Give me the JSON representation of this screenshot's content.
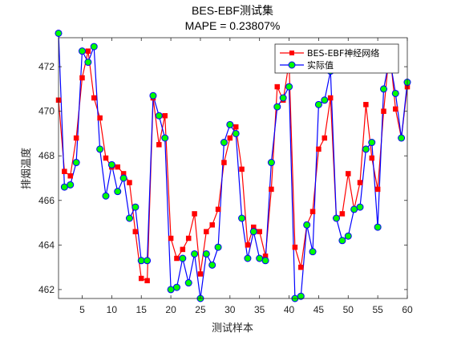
{
  "chart_data": {
    "type": "line",
    "title": "BES-EBF测试集",
    "subtitle": "MAPE = 0.23807%",
    "xlabel": "测试样本",
    "ylabel": "排烟温度",
    "xlim": [
      1,
      60
    ],
    "ylim": [
      461.6,
      473.3
    ],
    "xticks": [
      5,
      10,
      15,
      20,
      25,
      30,
      35,
      40,
      45,
      50,
      55,
      60
    ],
    "yticks": [
      462,
      464,
      466,
      468,
      470,
      472
    ],
    "grid": false,
    "legend_position": "top-right",
    "x": [
      1,
      2,
      3,
      4,
      5,
      6,
      7,
      8,
      9,
      10,
      11,
      12,
      13,
      14,
      15,
      16,
      17,
      18,
      19,
      20,
      21,
      22,
      23,
      24,
      25,
      26,
      27,
      28,
      29,
      30,
      31,
      32,
      33,
      34,
      35,
      36,
      37,
      38,
      39,
      40,
      41,
      42,
      43,
      44,
      45,
      46,
      47,
      48,
      49,
      50,
      51,
      52,
      53,
      54,
      55,
      56,
      57,
      58,
      59,
      60
    ],
    "series": [
      {
        "name": "BES-EBF神经网络",
        "color": "#ff0000",
        "marker": "square",
        "values": [
          470.5,
          467.3,
          467.1,
          468.8,
          471.5,
          472.7,
          470.6,
          469.7,
          467.9,
          467.5,
          467.5,
          467.2,
          466.8,
          464.6,
          462.5,
          462.4,
          470.6,
          468.5,
          469.8,
          464.3,
          463.4,
          463.8,
          464.3,
          465.4,
          462.7,
          464.6,
          464.9,
          465.6,
          467.7,
          468.8,
          469.3,
          467.4,
          464.0,
          464.8,
          464.6,
          463.5,
          466.5,
          471.1,
          470.5,
          472.2,
          463.9,
          463.0,
          464.9,
          465.5,
          468.3,
          468.8,
          470.6,
          465.2,
          465.4,
          467.2,
          465.6,
          466.8,
          470.3,
          467.9,
          466.5,
          470.0,
          472.8,
          470.1,
          468.8,
          471.1
        ]
      },
      {
        "name": "实际值",
        "color": "#0000ff",
        "marker": "circle",
        "values": [
          473.5,
          466.6,
          466.7,
          467.7,
          472.7,
          472.2,
          472.9,
          468.3,
          466.2,
          467.6,
          466.4,
          467.0,
          465.2,
          465.7,
          463.3,
          463.3,
          470.7,
          469.8,
          468.8,
          462.0,
          462.1,
          463.4,
          462.3,
          463.6,
          461.6,
          463.6,
          463.1,
          463.9,
          468.6,
          469.4,
          469.0,
          465.2,
          463.4,
          464.6,
          463.4,
          463.3,
          467.7,
          470.2,
          470.6,
          471.1,
          461.6,
          461.7,
          464.9,
          463.7,
          470.3,
          470.5,
          471.8,
          465.2,
          464.2,
          464.4,
          465.6,
          465.7,
          468.3,
          468.6,
          464.8,
          471.0,
          472.4,
          470.8,
          468.8,
          471.3
        ]
      }
    ]
  }
}
